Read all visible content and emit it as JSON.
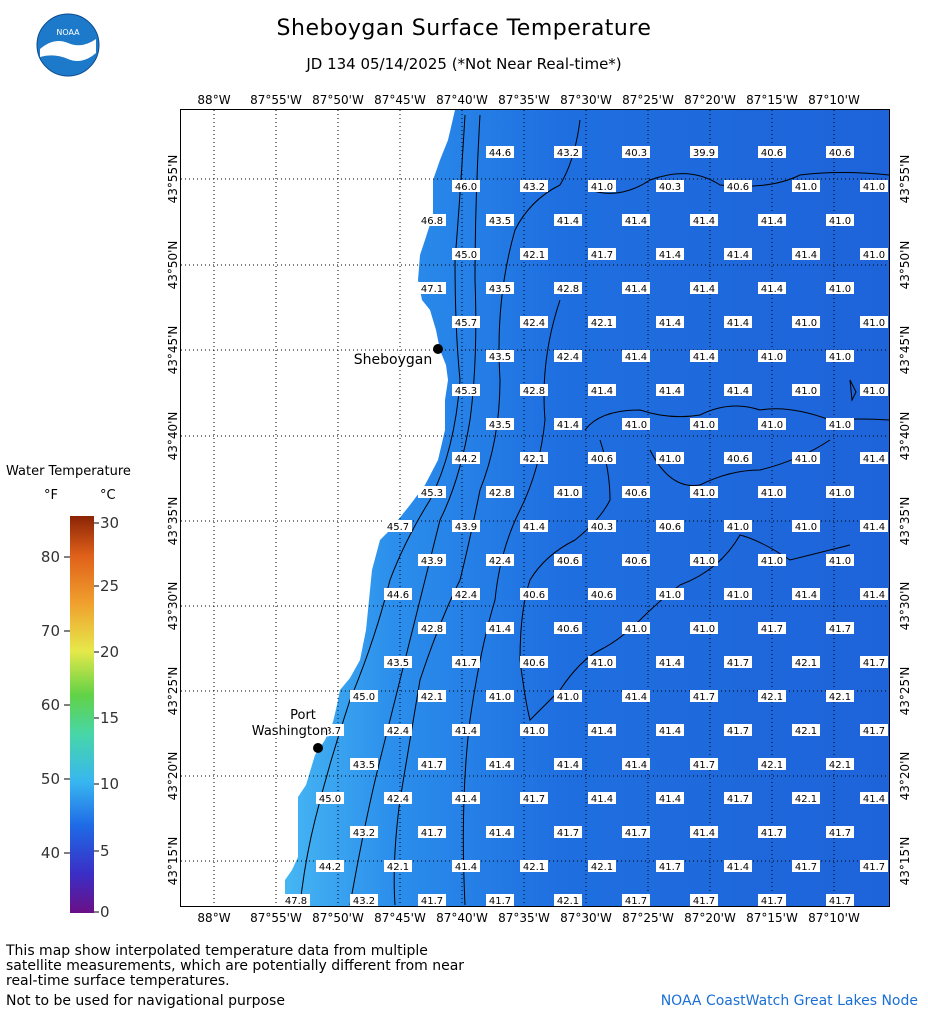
{
  "title": "Sheboygan Surface Temperature",
  "subtitle": "JD 134 05/14/2025 (*Not Near Real-time*)",
  "logo_text": "NOAA",
  "legend": {
    "title": "Water Temperature",
    "unit_f": "°F",
    "unit_c": "°C",
    "ticks_f": [
      "80",
      "70",
      "60",
      "50",
      "40"
    ],
    "ticks_c": [
      "30",
      "25",
      "20",
      "15",
      "10",
      "5",
      "0"
    ]
  },
  "lon_labels": [
    "88°W",
    "87°55'W",
    "87°50'W",
    "87°45'W",
    "87°40'W",
    "87°35'W",
    "87°30'W",
    "87°25'W",
    "87°20'W",
    "87°15'W",
    "87°10'W"
  ],
  "lat_labels": [
    "43°55'N",
    "43°50'N",
    "43°45'N",
    "43°40'N",
    "43°35'N",
    "43°30'N",
    "43°25'N",
    "43°20'N",
    "43°15'N"
  ],
  "cities": [
    {
      "name": "Sheboygan"
    },
    {
      "name": "Port Washington",
      "line1": "Port",
      "line2": "Washington"
    }
  ],
  "temperature_rows": [
    [
      "44.6",
      "43.2",
      "40.3",
      "39.9",
      "40.6",
      "40.6"
    ],
    [
      "46.0",
      "43.2",
      "41.0",
      "40.3",
      "40.6",
      "41.0",
      "41.0"
    ],
    [
      "46.8",
      "43.5",
      "41.4",
      "41.4",
      "41.4",
      "41.4",
      "41.0"
    ],
    [
      "45.0",
      "42.1",
      "41.7",
      "41.4",
      "41.4",
      "41.4",
      "41.0"
    ],
    [
      "47.1",
      "43.5",
      "42.8",
      "41.4",
      "41.4",
      "41.4",
      "41.0"
    ],
    [
      "45.7",
      "42.4",
      "42.1",
      "41.4",
      "41.4",
      "41.0",
      "41.0"
    ],
    [
      "43.5",
      "42.4",
      "41.4",
      "41.4",
      "41.0",
      "41.0"
    ],
    [
      "45.3",
      "42.8",
      "41.4",
      "41.4",
      "41.4",
      "41.0",
      "41.0"
    ],
    [
      "43.5",
      "41.4",
      "41.0",
      "41.0",
      "41.0",
      "41.0"
    ],
    [
      "44.2",
      "42.1",
      "40.6",
      "41.0",
      "40.6",
      "41.0",
      "41.4"
    ],
    [
      "45.3",
      "42.8",
      "41.0",
      "40.6",
      "41.0",
      "41.0",
      "41.0"
    ],
    [
      "45.7",
      "43.9",
      "41.4",
      "40.3",
      "40.6",
      "41.0",
      "41.0",
      "41.4"
    ],
    [
      "43.9",
      "42.4",
      "40.6",
      "40.6",
      "41.0",
      "41.0",
      "41.0"
    ],
    [
      "44.6",
      "42.4",
      "40.6",
      "40.6",
      "41.0",
      "41.0",
      "41.4",
      "41.4"
    ],
    [
      "42.8",
      "41.4",
      "40.6",
      "41.0",
      "41.0",
      "41.7",
      "41.7"
    ],
    [
      "43.5",
      "41.7",
      "40.6",
      "41.0",
      "41.4",
      "41.7",
      "42.1",
      "41.7"
    ],
    [
      "45.0",
      "42.1",
      "41.0",
      "41.0",
      "41.4",
      "41.7",
      "42.1",
      "42.1"
    ],
    [
      "43.7",
      "42.4",
      "41.4",
      "41.0",
      "41.4",
      "41.4",
      "41.7",
      "42.1",
      "41.7"
    ],
    [
      "43.5",
      "41.7",
      "41.4",
      "41.4",
      "41.4",
      "41.7",
      "42.1",
      "42.1"
    ],
    [
      "45.0",
      "42.4",
      "41.4",
      "41.7",
      "41.4",
      "41.4",
      "41.7",
      "42.1",
      "41.4"
    ],
    [
      "43.2",
      "41.7",
      "41.4",
      "41.7",
      "41.7",
      "41.4",
      "41.7",
      "41.7"
    ],
    [
      "44.2",
      "42.1",
      "41.4",
      "42.1",
      "42.1",
      "41.7",
      "41.4",
      "41.7",
      "41.7"
    ],
    [
      "47.8",
      "43.2",
      "41.7",
      "41.7",
      "42.1",
      "41.7",
      "41.7",
      "41.7",
      "41.7"
    ]
  ],
  "footer": {
    "note": "This map show interpolated temperature data from multiple satellite measurements, which are potentially different from near real-time surface temperatures.",
    "warning": "Not to be used for navigational purpose",
    "credit": "NOAA CoastWatch Great Lakes Node"
  },
  "colors": {
    "lake_dark": "#1e63d9",
    "lake_mid": "#1c73e6",
    "lake_shore": "#44b1f2",
    "land": "#ffffff",
    "credit": "#1a6fd6"
  }
}
